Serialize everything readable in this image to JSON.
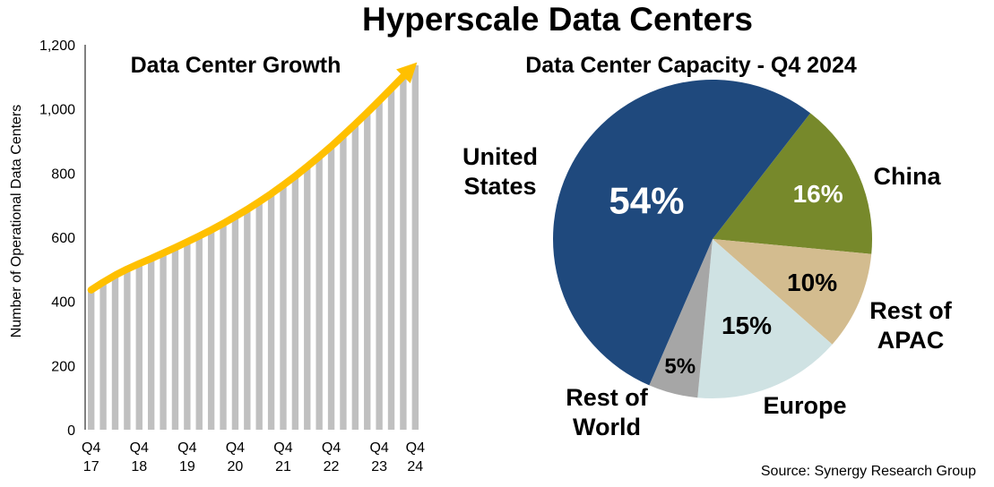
{
  "title": "Hyperscale Data Centers",
  "source": "Source: Synergy Research Group",
  "colors": {
    "bars": "#c0c0c0",
    "arrow": "#ffc000",
    "us": "#1f497d",
    "china": "#77892b",
    "rest_apac": "#d3bc8f",
    "europe": "#cfe2e3",
    "rest_world": "#a6a6a6"
  },
  "chart_data": [
    {
      "type": "bar",
      "title": "Data Center Growth",
      "xlabel": "",
      "ylabel": "Number of Operational Data Centers",
      "ylim": [
        0,
        1200
      ],
      "yticks": [
        "0",
        "200",
        "400",
        "600",
        "800",
        "1,000",
        "1,200"
      ],
      "x_tick_labels": [
        {
          "q": "Q4",
          "y": "17"
        },
        {
          "q": "Q4",
          "y": "18"
        },
        {
          "q": "Q4",
          "y": "19"
        },
        {
          "q": "Q4",
          "y": "20"
        },
        {
          "q": "Q4",
          "y": "21"
        },
        {
          "q": "Q4",
          "y": "22"
        },
        {
          "q": "Q4",
          "y": "23"
        },
        {
          "q": "Q4",
          "y": "24"
        }
      ],
      "values": [
        430,
        454,
        476,
        495,
        512,
        528,
        545,
        562,
        580,
        598,
        617,
        637,
        659,
        681,
        705,
        730,
        757,
        785,
        815,
        846,
        878,
        912,
        947,
        983,
        1020,
        1058,
        1096,
        1136
      ],
      "grid": false
    },
    {
      "type": "pie",
      "title": "Data Center Capacity - Q4 2024",
      "slices": [
        {
          "label": "United States",
          "label_lines": [
            "United",
            "States"
          ],
          "value": 54,
          "text": "54%",
          "color_key": "us"
        },
        {
          "label": "China",
          "label_lines": [
            "China"
          ],
          "value": 16,
          "text": "16%",
          "color_key": "china"
        },
        {
          "label": "Rest of APAC",
          "label_lines": [
            "Rest of",
            "APAC"
          ],
          "value": 10,
          "text": "10%",
          "color_key": "rest_apac"
        },
        {
          "label": "Europe",
          "label_lines": [
            "Europe"
          ],
          "value": 15,
          "text": "15%",
          "color_key": "europe"
        },
        {
          "label": "Rest of World",
          "label_lines": [
            "Rest of",
            "World"
          ],
          "value": 5,
          "text": "5%",
          "color_key": "rest_world"
        }
      ]
    }
  ]
}
